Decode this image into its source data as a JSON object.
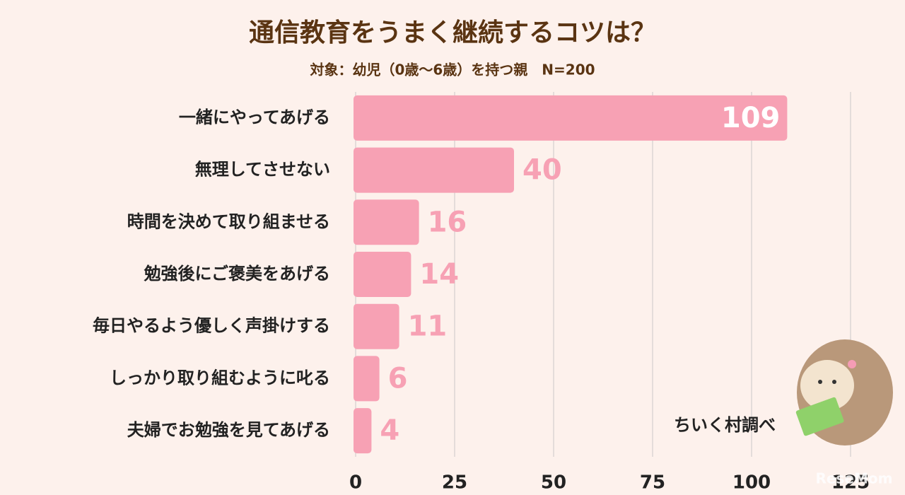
{
  "chart_data": {
    "type": "barh",
    "title": "通信教育をうまく継続するコツは？",
    "subtitle": "対象：幼児（0歳〜6歳）を持つ親　N=200",
    "categories": [
      "一緒にやってあげる",
      "無理してさせない",
      "時間を決めて取り組ませる",
      "勉強後にご褒美をあげる",
      "毎日やるよう優しく声掛けする",
      "しっかり取り組むように叱る",
      "夫婦でお勉強を見てあげる"
    ],
    "values": [
      109,
      40,
      16,
      14,
      11,
      6,
      4
    ],
    "color": "#f7a1b4",
    "xlim": [
      0,
      125
    ],
    "xticks": [
      0,
      25,
      50,
      75,
      100,
      125
    ],
    "grid": true,
    "source": "ちいく村調べ",
    "watermark": "ReseMom"
  }
}
